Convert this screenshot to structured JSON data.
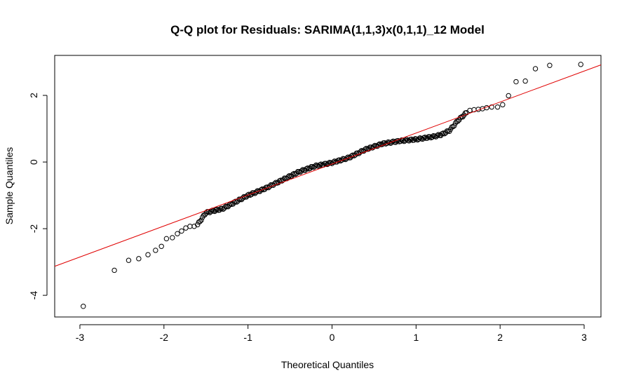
{
  "chart_data": {
    "type": "scatter",
    "title": "Q-Q plot for Residuals: SARIMA(1,1,3)x(0,1,1)_12 Model",
    "xlabel": "Theoretical Quantiles",
    "ylabel": "Sample Quantiles",
    "xlim": [
      -3.3,
      3.2
    ],
    "ylim": [
      -4.65,
      3.2
    ],
    "x_ticks": [
      -3,
      -2,
      -1,
      0,
      1,
      2,
      3
    ],
    "y_ticks": [
      -4,
      -2,
      0,
      2
    ],
    "grid": false,
    "legend": "none",
    "n_points": 249,
    "point_color": "#000000",
    "line_color": "#e00000",
    "reference_line": {
      "through": [
        [
          -1,
          -0.99
        ],
        [
          1,
          0.87
        ]
      ],
      "slope": 0.93,
      "intercept": -0.06
    },
    "tail_points": [
      {
        "x": -2.96,
        "y": -4.33
      },
      {
        "x": -2.59,
        "y": -3.25
      },
      {
        "x": -2.42,
        "y": -2.95
      },
      {
        "x": -2.3,
        "y": -2.9
      },
      {
        "x": -2.19,
        "y": -2.78
      },
      {
        "x": -2.1,
        "y": -2.65
      },
      {
        "x": -2.03,
        "y": -2.53
      },
      {
        "x": -1.97,
        "y": -2.3
      },
      {
        "x": -1.9,
        "y": -2.27
      },
      {
        "x": -1.84,
        "y": -2.15
      },
      {
        "x": -1.79,
        "y": -2.07
      },
      {
        "x": -1.74,
        "y": -1.98
      },
      {
        "x": -1.69,
        "y": -1.93
      },
      {
        "x": -1.64,
        "y": -1.93
      },
      {
        "x": -1.6,
        "y": -1.88
      },
      {
        "x": 1.6,
        "y": 1.48
      },
      {
        "x": 1.64,
        "y": 1.55
      },
      {
        "x": 1.69,
        "y": 1.57
      },
      {
        "x": 1.74,
        "y": 1.58
      },
      {
        "x": 1.79,
        "y": 1.6
      },
      {
        "x": 1.84,
        "y": 1.63
      },
      {
        "x": 1.9,
        "y": 1.65
      },
      {
        "x": 1.97,
        "y": 1.65
      },
      {
        "x": 2.03,
        "y": 1.72
      },
      {
        "x": 2.1,
        "y": 1.99
      },
      {
        "x": 2.19,
        "y": 2.41
      },
      {
        "x": 2.3,
        "y": 2.43
      },
      {
        "x": 2.42,
        "y": 2.8
      },
      {
        "x": 2.59,
        "y": 2.9
      },
      {
        "x": 2.96,
        "y": 2.93
      }
    ],
    "quantile_profile": {
      "x": [
        -1.6,
        -1.5,
        -1.3,
        -1.15,
        -1.0,
        -0.8,
        -0.6,
        -0.4,
        -0.2,
        0.0,
        0.2,
        0.4,
        0.6,
        0.8,
        1.0,
        1.2,
        1.3,
        1.4,
        1.5,
        1.6
      ],
      "y": [
        -1.88,
        -1.52,
        -1.4,
        -1.2,
        -1.0,
        -0.8,
        -0.55,
        -0.3,
        -0.12,
        -0.02,
        0.13,
        0.38,
        0.55,
        0.63,
        0.68,
        0.76,
        0.82,
        0.95,
        1.25,
        1.48
      ]
    }
  }
}
